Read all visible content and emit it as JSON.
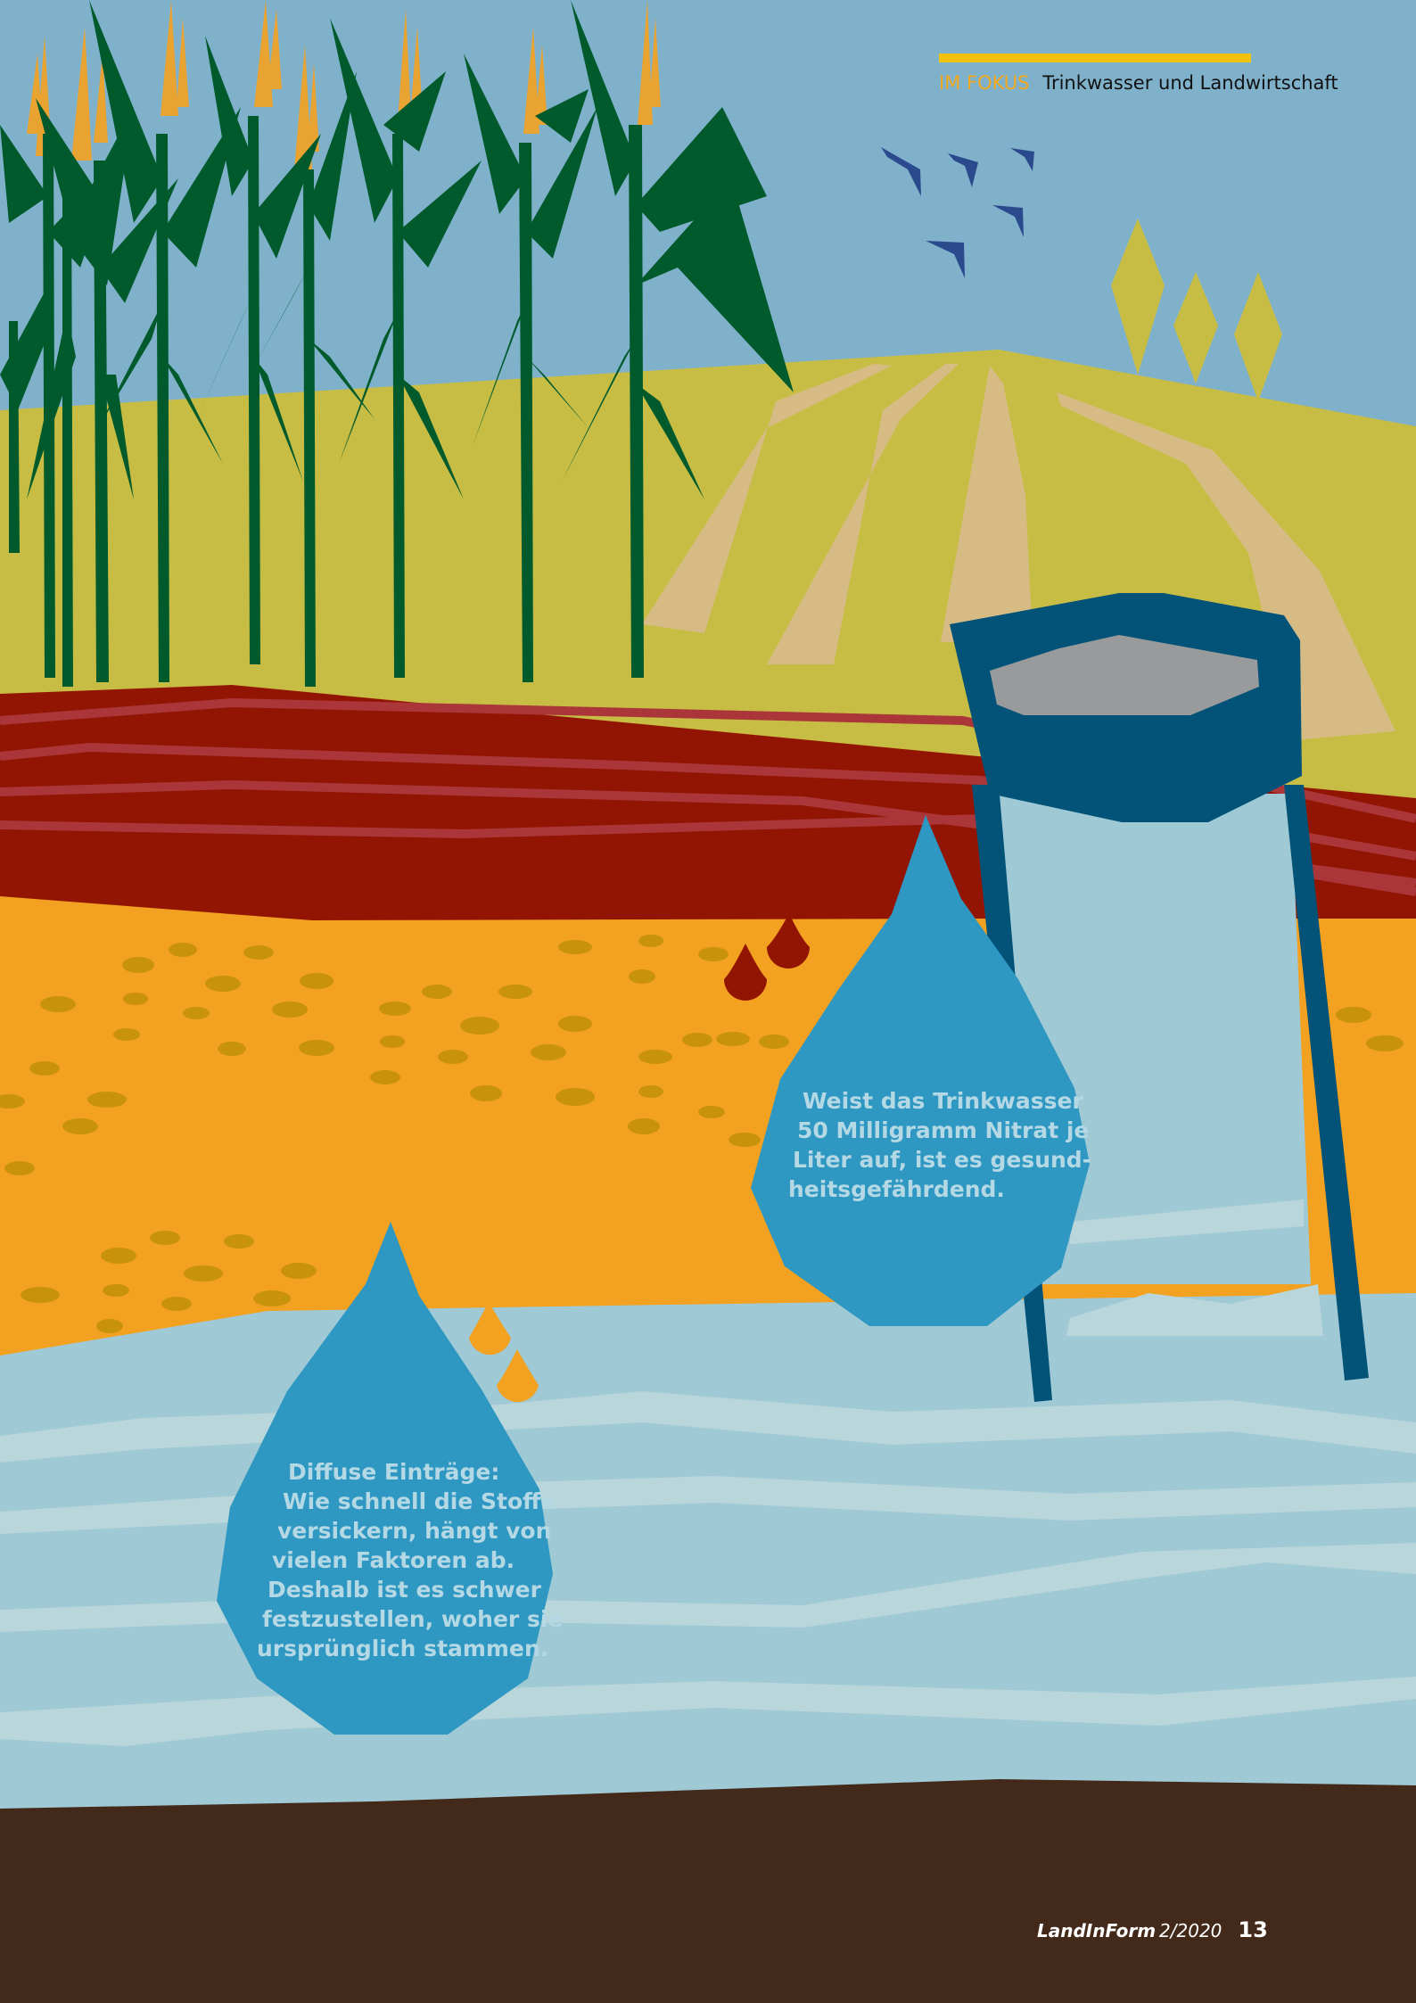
{
  "header": {
    "kicker": "IM FOKUS",
    "topic": "Trinkwasser und Landwirtschaft"
  },
  "bubble_right": {
    "lines": [
      "Weist das Trinkwasser",
      "50 Milligramm Nitrat je",
      "Liter auf, ist es gesund-",
      "heitsgefährdend."
    ]
  },
  "bubble_left": {
    "lines": [
      "Diffuse Einträge:",
      "Wie schnell die Stoffe",
      "versickern, hängt von",
      "vielen Faktoren ab.",
      "Deshalb ist es schwer",
      "festzustellen, woher sie",
      "ursprünglich stammen."
    ]
  },
  "footer": {
    "magazine": "LandInForm",
    "issue": "2/2020",
    "page": "13"
  },
  "colors": {
    "sky": "#80b1cb",
    "field": "#c8bd44",
    "soil_red": "#921503",
    "soil_orange": "#f3a120",
    "water": "#9fc9d4",
    "drop": "#2e97c2",
    "ground": "#43291a",
    "corn": "#015a2c",
    "well": "#035379"
  }
}
